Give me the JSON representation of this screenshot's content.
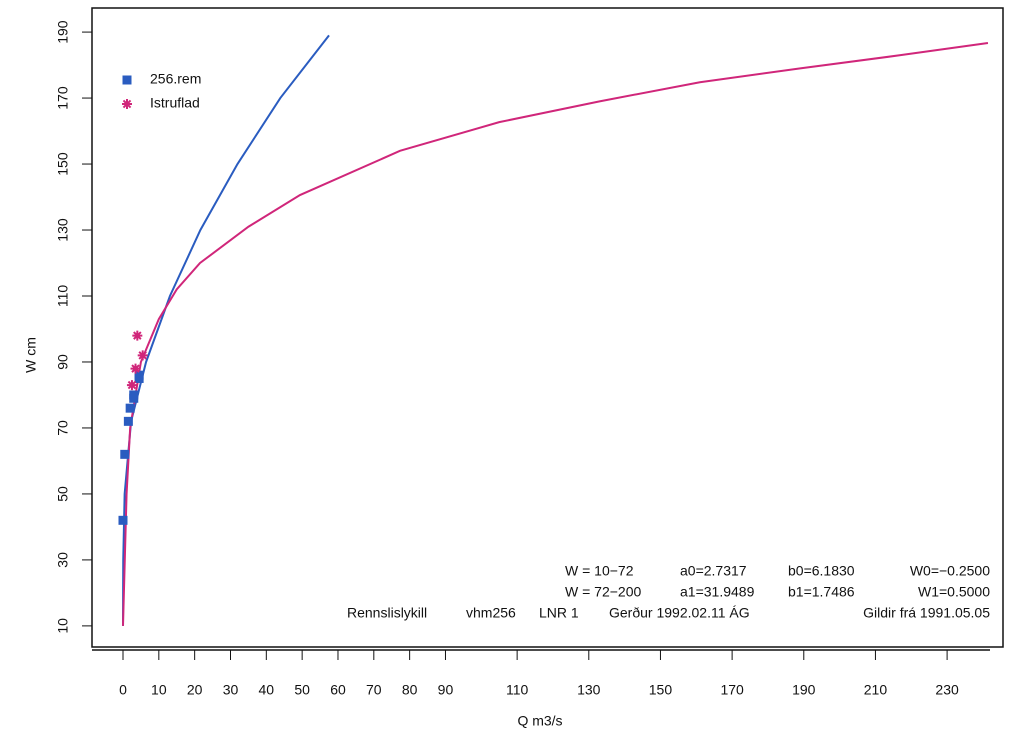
{
  "chart_data": {
    "type": "scatter",
    "x_label": "Q m3/s",
    "y_label": "W cm",
    "xlim": [
      -8.65,
      245.6
    ],
    "ylim": [
      3.6,
      197.3
    ],
    "xticks": [
      0,
      10,
      20,
      30,
      40,
      50,
      60,
      70,
      80,
      90,
      110,
      130,
      150,
      170,
      190,
      210,
      230
    ],
    "yticks": [
      10,
      30,
      50,
      70,
      90,
      110,
      130,
      150,
      170,
      190
    ],
    "series": [
      {
        "name": "256.rem",
        "color": "#2a5cc0",
        "marker": "square",
        "x": [
          0,
          0.5,
          1.5,
          2,
          3,
          3,
          4.5,
          4.5
        ],
        "values": [
          42,
          62,
          72,
          76,
          79,
          80,
          85,
          86
        ]
      },
      {
        "name": "Istruflad",
        "color": "#d0267a",
        "marker": "star",
        "x": [
          2.5,
          3.5,
          4,
          5.5
        ],
        "values": [
          83,
          88,
          98,
          92
        ]
      }
    ],
    "curves": [
      {
        "color": "#2a5cc0",
        "x": [
          0.004,
          0.068,
          0.46,
          2.26,
          6.44,
          13.1,
          21.6,
          31.95,
          43.9,
          57.5
        ],
        "values": [
          10,
          30,
          50,
          72,
          90,
          110,
          130,
          150,
          170,
          189
        ]
      },
      {
        "color": "#d0267a",
        "x": [
          0,
          0.5,
          1,
          2,
          5,
          10,
          15,
          21.5,
          35,
          49.4,
          77.3,
          105,
          133,
          161,
          189,
          217,
          241.4
        ],
        "values": [
          10,
          30,
          50,
          70,
          90,
          103,
          112,
          120,
          131,
          140.6,
          154,
          162.7,
          169,
          174.8,
          179,
          183,
          186.7
        ]
      }
    ],
    "annotations": [
      {
        "color": "#2a5cc0",
        "cells": [
          "W = 10−72",
          "a0=2.7317",
          "b0=6.1830",
          "W0=−0.2500"
        ]
      },
      {
        "color": "#2a5cc0",
        "cells": [
          "W = 72−200",
          "a1=31.9489",
          "b1=1.7486",
          "W1=0.5000"
        ]
      },
      {
        "color": "#d0267a",
        "cells": [
          "Rennslislykill",
          "vhm256",
          "LNR 1",
          "Gerður 1992.02.11 ÁG",
          "Gildir frá 1991.05.05"
        ]
      }
    ]
  }
}
